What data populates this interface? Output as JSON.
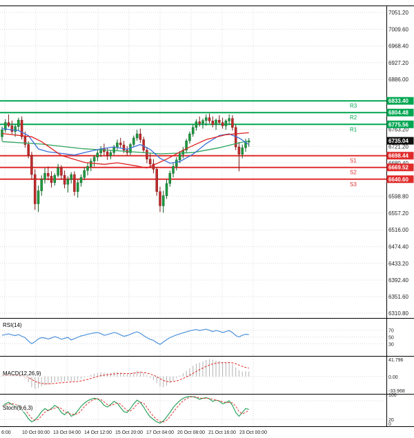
{
  "chart_data": {
    "type": "candlestick",
    "x_axis_labels": [
      "6:00",
      "10 Oct 00:00",
      "13 Oct 04:00",
      "14 Oct 12:00",
      "15 Oct 20:00",
      "17 Oct 04:00",
      "20 Oct 08:00",
      "21 Oct 16:00",
      "23 Oct 00:00"
    ],
    "price_axis": {
      "min": 6299,
      "max": 7068,
      "ticks": [
        7051.2,
        7009.6,
        6968.4,
        6927.2,
        6886.0,
        6763.2,
        6721.2,
        6680.4,
        6598.8,
        6557.2,
        6516.0,
        6474.4,
        6433.2,
        6392.4,
        6351.6,
        6310.8
      ]
    },
    "levels": {
      "resistance": [
        {
          "label": "R3",
          "value": 6833.4
        },
        {
          "label": "R2",
          "value": 6804.48
        },
        {
          "label": "R1",
          "value": 6775.56
        }
      ],
      "support": [
        {
          "label": "S1",
          "value": 6698.44
        },
        {
          "label": "S2",
          "value": 6669.52
        },
        {
          "label": "S3",
          "value": 6640.6
        }
      ]
    },
    "current_price": 6735.04,
    "candles": [
      [
        6745,
        6770,
        6735,
        6762
      ],
      [
        6762,
        6788,
        6755,
        6780
      ],
      [
        6780,
        6800,
        6768,
        6772
      ],
      [
        6772,
        6785,
        6752,
        6758
      ],
      [
        6758,
        6775,
        6745,
        6770
      ],
      [
        6770,
        6792,
        6760,
        6786
      ],
      [
        6786,
        6795,
        6738,
        6745
      ],
      [
        6745,
        6758,
        6718,
        6726
      ],
      [
        6726,
        6734,
        6692,
        6700
      ],
      [
        6700,
        6708,
        6640,
        6652
      ],
      [
        6652,
        6665,
        6565,
        6580
      ],
      [
        6580,
        6625,
        6560,
        6612
      ],
      [
        6612,
        6650,
        6600,
        6640
      ],
      [
        6640,
        6668,
        6630,
        6655
      ],
      [
        6655,
        6672,
        6638,
        6648
      ],
      [
        6648,
        6660,
        6620,
        6632
      ],
      [
        6632,
        6655,
        6625,
        6650
      ],
      [
        6650,
        6678,
        6645,
        6668
      ],
      [
        6668,
        6675,
        6640,
        6650
      ],
      [
        6650,
        6662,
        6618,
        6628
      ],
      [
        6628,
        6648,
        6608,
        6640
      ],
      [
        6640,
        6658,
        6630,
        6652
      ],
      [
        6652,
        6660,
        6600,
        6610
      ],
      [
        6610,
        6640,
        6595,
        6632
      ],
      [
        6632,
        6652,
        6622,
        6645
      ],
      [
        6645,
        6670,
        6638,
        6662
      ],
      [
        6662,
        6680,
        6650,
        6672
      ],
      [
        6672,
        6692,
        6660,
        6685
      ],
      [
        6685,
        6700,
        6672,
        6695
      ],
      [
        6695,
        6712,
        6685,
        6705
      ],
      [
        6705,
        6722,
        6695,
        6715
      ],
      [
        6715,
        6728,
        6700,
        6708
      ],
      [
        6708,
        6718,
        6688,
        6698
      ],
      [
        6698,
        6712,
        6690,
        6706
      ],
      [
        6706,
        6725,
        6700,
        6720
      ],
      [
        6720,
        6738,
        6712,
        6730
      ],
      [
        6730,
        6742,
        6718,
        6725
      ],
      [
        6725,
        6735,
        6705,
        6712
      ],
      [
        6712,
        6722,
        6698,
        6706
      ],
      [
        6706,
        6730,
        6700,
        6726
      ],
      [
        6726,
        6748,
        6720,
        6742
      ],
      [
        6742,
        6762,
        6735,
        6752
      ],
      [
        6752,
        6765,
        6730,
        6738
      ],
      [
        6738,
        6745,
        6705,
        6712
      ],
      [
        6712,
        6720,
        6680,
        6690
      ],
      [
        6690,
        6705,
        6668,
        6678
      ],
      [
        6678,
        6690,
        6655,
        6665
      ],
      [
        6665,
        6670,
        6600,
        6610
      ],
      [
        6610,
        6622,
        6560,
        6575
      ],
      [
        6575,
        6612,
        6558,
        6600
      ],
      [
        6600,
        6640,
        6592,
        6630
      ],
      [
        6630,
        6662,
        6622,
        6655
      ],
      [
        6655,
        6680,
        6645,
        6672
      ],
      [
        6672,
        6695,
        6662,
        6688
      ],
      [
        6688,
        6710,
        6680,
        6702
      ],
      [
        6702,
        6720,
        6692,
        6712
      ],
      [
        6712,
        6740,
        6705,
        6735
      ],
      [
        6735,
        6758,
        6728,
        6752
      ],
      [
        6752,
        6775,
        6745,
        6768
      ],
      [
        6768,
        6788,
        6760,
        6782
      ],
      [
        6782,
        6795,
        6770,
        6778
      ],
      [
        6778,
        6790,
        6765,
        6785
      ],
      [
        6785,
        6800,
        6772,
        6792
      ],
      [
        6792,
        6802,
        6778,
        6784
      ],
      [
        6784,
        6795,
        6768,
        6775
      ],
      [
        6775,
        6790,
        6762,
        6786
      ],
      [
        6786,
        6798,
        6775,
        6780
      ],
      [
        6780,
        6792,
        6765,
        6772
      ],
      [
        6772,
        6788,
        6762,
        6784
      ],
      [
        6784,
        6800,
        6775,
        6790
      ],
      [
        6790,
        6798,
        6760,
        6768
      ],
      [
        6768,
        6775,
        6712,
        6720
      ],
      [
        6720,
        6732,
        6660,
        6702
      ],
      [
        6702,
        6726,
        6692,
        6718
      ],
      [
        6718,
        6740,
        6708,
        6732
      ],
      [
        6732,
        6742,
        6720,
        6735
      ]
    ],
    "overlays": {
      "ma_red": [
        [
          0,
          6753
        ],
        [
          9,
          6745
        ],
        [
          12,
          6733
        ],
        [
          18,
          6699
        ],
        [
          25,
          6682
        ],
        [
          31,
          6677
        ],
        [
          35,
          6681
        ],
        [
          41,
          6673
        ],
        [
          44,
          6668
        ],
        [
          50,
          6690
        ],
        [
          56,
          6716
        ],
        [
          62,
          6738
        ],
        [
          68,
          6750
        ],
        [
          75,
          6755
        ]
      ],
      "ma_blue": [
        [
          0,
          6765
        ],
        [
          5,
          6760
        ],
        [
          8,
          6748
        ],
        [
          11,
          6715
        ],
        [
          14,
          6708
        ],
        [
          18,
          6704
        ],
        [
          22,
          6700
        ],
        [
          26,
          6708
        ],
        [
          30,
          6715
        ],
        [
          34,
          6720
        ],
        [
          38,
          6714
        ],
        [
          42,
          6726
        ],
        [
          45,
          6714
        ],
        [
          48,
          6692
        ],
        [
          51,
          6680
        ],
        [
          54,
          6684
        ],
        [
          58,
          6702
        ],
        [
          62,
          6728
        ],
        [
          66,
          6748
        ],
        [
          69,
          6752
        ],
        [
          72,
          6742
        ],
        [
          75,
          6726
        ]
      ],
      "ma_green": [
        [
          0,
          6733
        ],
        [
          12,
          6727
        ],
        [
          24,
          6716
        ],
        [
          36,
          6710
        ],
        [
          48,
          6703
        ],
        [
          58,
          6706
        ],
        [
          66,
          6718
        ],
        [
          72,
          6730
        ],
        [
          75,
          6735
        ]
      ]
    },
    "indicators": {
      "rsi": {
        "label": "RSI(14)",
        "ticks": [
          {
            "label": "70",
            "value": 70
          },
          {
            "label": "50",
            "value": 50
          },
          {
            "label": "30",
            "value": 30
          }
        ],
        "values": [
          55,
          57,
          59,
          56,
          54,
          57,
          52,
          48,
          38,
          30,
          36,
          44,
          48,
          47,
          44,
          47,
          51,
          48,
          43,
          46,
          49,
          41,
          45,
          49,
          53,
          55,
          58,
          60,
          62,
          63,
          60,
          55,
          57,
          60,
          63,
          61,
          56,
          52,
          54,
          58,
          62,
          65,
          61,
          54,
          48,
          43,
          40,
          33,
          28,
          35,
          42,
          48,
          52,
          56,
          59,
          62,
          65,
          68,
          70,
          72,
          69,
          71,
          73,
          70,
          66,
          69,
          67,
          63,
          66,
          69,
          63,
          54,
          50,
          55,
          58,
          57
        ]
      },
      "macd": {
        "label": "MACD(12,26,9)",
        "ticks": [
          {
            "label": "41.796",
            "value": 41.796
          },
          {
            "label": "0.00",
            "value": 0
          },
          {
            "label": "-33.968",
            "value": -33.968
          }
        ],
        "values": [
          2,
          3,
          4,
          3,
          2,
          3,
          0,
          -4,
          -14,
          -26,
          -30,
          -28,
          -24,
          -21,
          -19,
          -16,
          -13,
          -12,
          -13,
          -12,
          -10,
          -12,
          -11,
          -8,
          -5,
          -2,
          1,
          4,
          7,
          9,
          10,
          9,
          8,
          9,
          11,
          11,
          9,
          7,
          6,
          8,
          11,
          14,
          13,
          9,
          3,
          -3,
          -8,
          -16,
          -24,
          -26,
          -22,
          -16,
          -10,
          -4,
          2,
          8,
          14,
          20,
          26,
          31,
          34,
          37,
          40,
          42,
          41,
          39,
          38,
          35,
          34,
          35,
          30,
          22,
          15,
          12,
          13,
          12
        ]
      },
      "stoch": {
        "label": "Stoch(9,6,3)",
        "ticks": [
          {
            "label": "100",
            "value": 100
          },
          {
            "label": "20",
            "value": 20
          },
          {
            "label": "0",
            "value": 0
          }
        ],
        "levels": [
          80,
          20
        ],
        "k": [
          62,
          70,
          75,
          68,
          60,
          66,
          50,
          38,
          22,
          12,
          18,
          30,
          45,
          55,
          48,
          55,
          65,
          58,
          42,
          35,
          45,
          30,
          35,
          48,
          62,
          72,
          80,
          85,
          88,
          86,
          78,
          65,
          60,
          68,
          78,
          72,
          58,
          45,
          42,
          55,
          70,
          82,
          75,
          60,
          42,
          28,
          20,
          12,
          8,
          15,
          28,
          42,
          58,
          70,
          80,
          88,
          92,
          94,
          93,
          90,
          85,
          88,
          90,
          86,
          78,
          82,
          79,
          70,
          74,
          80,
          65,
          42,
          30,
          42,
          55,
          52
        ]
      }
    },
    "colors": {
      "bull": "#1f9c40",
      "bull_dark": "#0c5f24",
      "bear": "#c22b2b",
      "bear_dark": "#7d1616",
      "resistance": "#00a651",
      "support": "#e02b2b",
      "current": "#101010",
      "ma_red": "#e02020",
      "ma_blue": "#3a6fd8",
      "ma_green": "#2aa35c",
      "rsi": "#4a90d9",
      "macd_hist": "#b0b0b0",
      "macd_signal": "#e02020",
      "stoch_k": "#2aa35c",
      "stoch_d": "#e03131",
      "grid": "#d8d8d8",
      "border": "#000000",
      "tick_text": "#222222"
    }
  }
}
